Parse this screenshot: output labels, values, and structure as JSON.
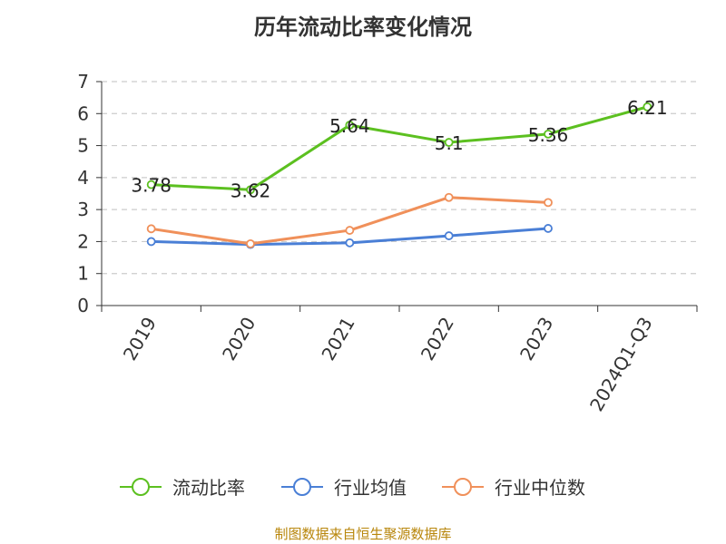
{
  "title": "历年流动比率变化情况",
  "source_note": "制图数据来自恒生聚源数据库",
  "chart_data": {
    "type": "line",
    "title": "历年流动比率变化情况",
    "categories": [
      "2019",
      "2020",
      "2021",
      "2022",
      "2023",
      "2024Q1-Q3"
    ],
    "series": [
      {
        "name": "流动比率",
        "values": [
          3.78,
          3.62,
          5.64,
          5.1,
          5.36,
          6.21
        ],
        "labels": [
          "3.78",
          "3.62",
          "5.64",
          "5.1",
          "5.36",
          "6.21"
        ],
        "color": "#5cc020"
      },
      {
        "name": "行业均值",
        "values": [
          2.0,
          1.91,
          1.96,
          2.18,
          2.41,
          null
        ],
        "color": "#4a7fd6"
      },
      {
        "name": "行业中位数",
        "values": [
          2.4,
          1.93,
          2.35,
          3.38,
          3.22,
          null
        ],
        "color": "#f0905a"
      }
    ],
    "ylim": [
      0,
      7
    ],
    "yticks": [
      "0",
      "1",
      "2",
      "3",
      "4",
      "5",
      "6",
      "7"
    ],
    "grid": true,
    "legend": "bottom"
  }
}
